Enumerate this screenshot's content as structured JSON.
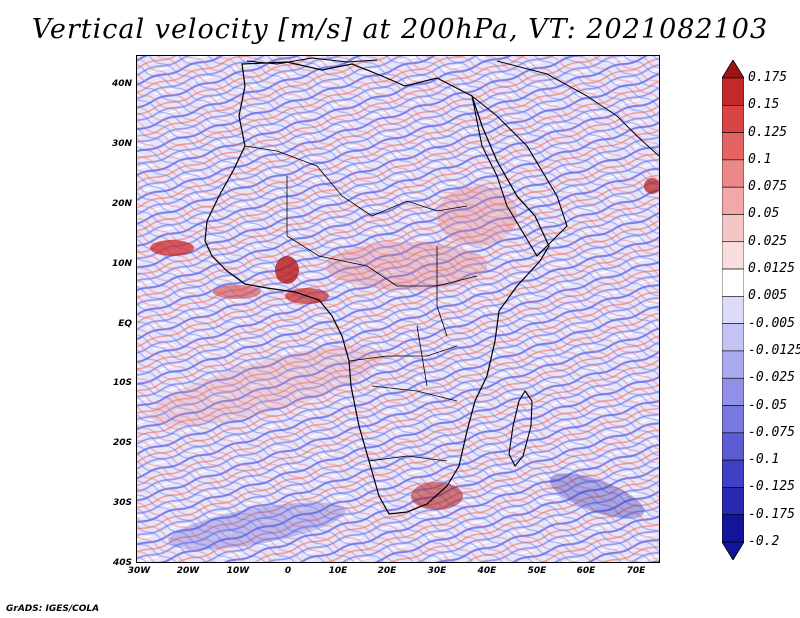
{
  "title": "Vertical velocity [m/s] at 200hPa, VT: 2021082103",
  "credit": "GrADS: IGES/COLA",
  "map": {
    "lat_labels": [
      "40N",
      "30N",
      "20N",
      "10N",
      "EQ",
      "10S",
      "20S",
      "30S",
      "40S"
    ],
    "lon_labels": [
      "30W",
      "20W",
      "10W",
      "0",
      "10E",
      "20E",
      "30E",
      "40E",
      "50E",
      "60E",
      "70E"
    ]
  },
  "colorbar": {
    "labels": [
      "0.175",
      "0.15",
      "0.125",
      "0.1",
      "0.075",
      "0.05",
      "0.025",
      "0.0125",
      "0.005",
      "-0.005",
      "-0.0125",
      "-0.025",
      "-0.05",
      "-0.075",
      "-0.1",
      "-0.125",
      "-0.175",
      "-0.2"
    ],
    "colors": [
      "#a01414",
      "#c22a2a",
      "#d94444",
      "#e46464",
      "#ec8888",
      "#f2a8a8",
      "#f6c6c6",
      "#fadede",
      "#ffffff",
      "#dcdcf8",
      "#c4c4f4",
      "#aaaaf0",
      "#9090e8",
      "#7878e0",
      "#5c5cd4",
      "#4040c4",
      "#2828b0",
      "#14149a"
    ]
  },
  "palette": {
    "red": "#d23c3c",
    "blue": "#5a5ae6",
    "white": "#ffffff"
  }
}
